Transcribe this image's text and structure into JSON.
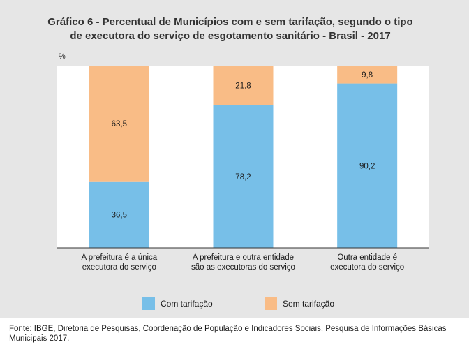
{
  "title_lines": [
    "Gráfico 6 - Percentual de Municípios com e sem tarifação, segundo o tipo",
    "de executora do serviço de esgotamento sanitário - Brasil - 2017"
  ],
  "y_unit": "%",
  "source_text": "Fonte: IBGE, Diretoria de Pesquisas, Coordenação de População e Indicadores Sociais, Pesquisa de Informações Básicas Municipais 2017.",
  "colors": {
    "com": "#77bfe8",
    "sem": "#f9bc86",
    "panel": "#e6e6e6",
    "plot": "#ffffff"
  },
  "chart_data": {
    "type": "bar",
    "stacked": true,
    "categories": [
      [
        "A prefeitura é a única",
        "executora do serviço"
      ],
      [
        "A prefeitura e outra entidade",
        "são as executoras do serviço"
      ],
      [
        "Outra entidade é",
        "executora do serviço"
      ]
    ],
    "series": [
      {
        "name": "Com tarifação",
        "values": [
          36.5,
          78.2,
          90.2
        ],
        "labels": [
          "36,5",
          "78,2",
          "90,2"
        ],
        "color": "#77bfe8"
      },
      {
        "name": "Sem tarifação",
        "values": [
          63.5,
          21.8,
          9.8
        ],
        "labels": [
          "63,5",
          "21,8",
          "9,8"
        ],
        "color": "#f9bc86"
      }
    ],
    "ylim": [
      0,
      100
    ],
    "grid": false,
    "legend_position": "bottom"
  }
}
